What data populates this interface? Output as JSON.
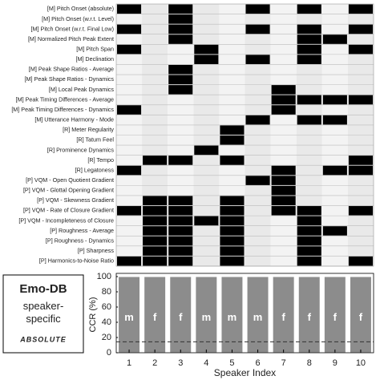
{
  "chart_data": [
    {
      "type": "heatmap",
      "rows": [
        "[M] Pitch Onset (absolute)",
        "[M] Pitch Onset (w.r.t. Level)",
        "[M] Pitch Onset (w.r.t. Final Low)",
        "[M] Normalized Pitch Peak Extent",
        "[M] Pitch Span",
        "[M] Declination",
        "[M] Peak Shape Ratios - Average",
        "[M] Peak Shape Ratios - Dynamics",
        "[M] Local Peak Dynamics",
        "[M] Peak Timing Differences - Average",
        "[M] Peak Timing Differences - Dynamics",
        "[M] Utterance Harmony - Mode",
        "[R] Meter Regularity",
        "[R] Tatum Feel",
        "[R] Prominence Dynamics",
        "[R] Tempo",
        "[R] Legatoness",
        "[P] VQM - Open Quotient Gradient",
        "[P] VQM - Glottal Opening Gradient",
        "[P] VQM - Skewness Gradient",
        "[P] VQM - Rate of Closure Gradient",
        "[P] VQM - Incompleteness of Closure",
        "[P] Roughness - Average",
        "[P] Roughness - Dynamics",
        "[P] Sharpness",
        "[P] Harmonics-to-Noise Ratio"
      ],
      "values": [
        [
          1,
          0,
          1,
          0,
          0,
          1,
          0,
          1,
          0,
          1
        ],
        [
          0,
          0,
          1,
          0,
          0,
          0,
          0,
          0,
          0,
          0
        ],
        [
          1,
          0,
          1,
          0,
          0,
          1,
          0,
          1,
          0,
          1
        ],
        [
          0,
          0,
          1,
          0,
          0,
          0,
          0,
          1,
          1,
          0
        ],
        [
          1,
          0,
          0,
          1,
          0,
          0,
          0,
          1,
          0,
          1
        ],
        [
          0,
          0,
          0,
          1,
          0,
          1,
          0,
          1,
          0,
          0
        ],
        [
          0,
          0,
          1,
          0,
          0,
          0,
          0,
          0,
          0,
          0
        ],
        [
          0,
          0,
          1,
          0,
          0,
          0,
          0,
          0,
          0,
          0
        ],
        [
          0,
          0,
          1,
          0,
          0,
          0,
          1,
          0,
          0,
          0
        ],
        [
          0,
          0,
          0,
          0,
          0,
          0,
          1,
          1,
          1,
          1
        ],
        [
          1,
          0,
          0,
          0,
          0,
          0,
          1,
          0,
          0,
          0
        ],
        [
          0,
          0,
          0,
          0,
          0,
          1,
          0,
          1,
          1,
          0
        ],
        [
          0,
          0,
          0,
          0,
          1,
          0,
          0,
          0,
          0,
          0
        ],
        [
          0,
          0,
          0,
          0,
          1,
          0,
          0,
          0,
          0,
          0
        ],
        [
          0,
          0,
          0,
          1,
          0,
          0,
          0,
          0,
          0,
          0
        ],
        [
          0,
          1,
          1,
          0,
          1,
          0,
          0,
          0,
          0,
          1
        ],
        [
          1,
          0,
          0,
          0,
          0,
          0,
          1,
          0,
          1,
          1
        ],
        [
          0,
          0,
          0,
          0,
          0,
          1,
          1,
          0,
          0,
          0
        ],
        [
          0,
          0,
          0,
          0,
          0,
          0,
          1,
          0,
          0,
          0
        ],
        [
          0,
          1,
          1,
          0,
          1,
          0,
          1,
          0,
          0,
          0
        ],
        [
          1,
          1,
          1,
          0,
          1,
          0,
          1,
          1,
          0,
          1
        ],
        [
          0,
          1,
          1,
          1,
          1,
          0,
          0,
          1,
          0,
          0
        ],
        [
          0,
          1,
          1,
          0,
          1,
          0,
          0,
          1,
          1,
          0
        ],
        [
          0,
          1,
          1,
          0,
          1,
          0,
          0,
          1,
          0,
          0
        ],
        [
          0,
          1,
          1,
          0,
          1,
          0,
          0,
          1,
          0,
          0
        ],
        [
          1,
          1,
          1,
          0,
          1,
          0,
          0,
          1,
          0,
          1
        ]
      ],
      "on_color": "#000000"
    },
    {
      "type": "bar",
      "categories": [
        "1",
        "2",
        "3",
        "4",
        "5",
        "6",
        "7",
        "8",
        "9",
        "10"
      ],
      "values": [
        100,
        100,
        100,
        100,
        100,
        100,
        100,
        100,
        100,
        100
      ],
      "annotations": [
        "m",
        "f",
        "f",
        "m",
        "m",
        "m",
        "f",
        "f",
        "f",
        "f"
      ],
      "color": "#8c8c8c",
      "ylim": [
        0,
        100
      ],
      "yticks": [
        0,
        20,
        40,
        60,
        80,
        100
      ],
      "ylabel": "CCR (%)",
      "xlabel": "Speaker Index",
      "reference_line": 14.3,
      "box_title": "Emo-DB",
      "box_subtitle": "speaker-specific",
      "box_note": "ABSOLUTE"
    }
  ]
}
